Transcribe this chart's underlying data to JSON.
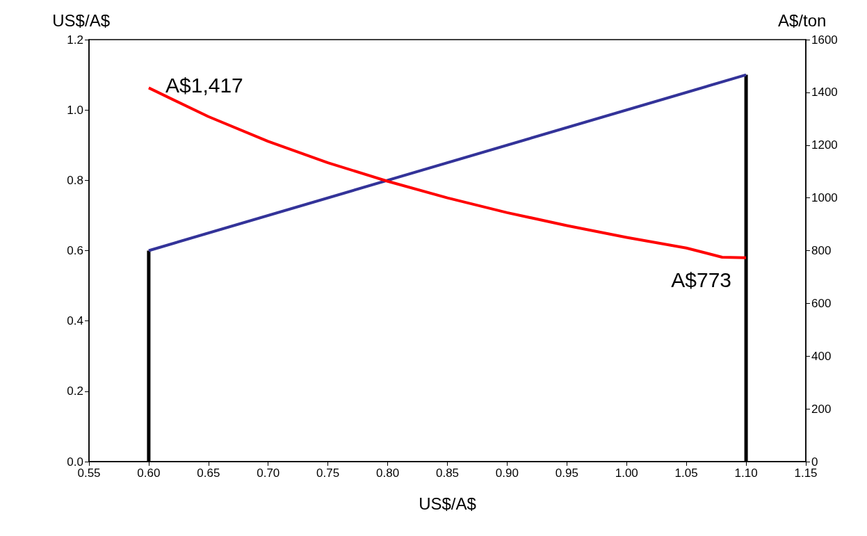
{
  "chart_data": {
    "type": "line",
    "xlabel": "US$/A$",
    "ylabel": "US$/A$",
    "y2label": "A$/ton",
    "xlim": [
      0.55,
      1.15
    ],
    "xticks": [
      {
        "value": 0.55,
        "label": "0.55"
      },
      {
        "value": 0.6,
        "label": "0.60"
      },
      {
        "value": 0.65,
        "label": "0.65"
      },
      {
        "value": 0.7,
        "label": "0.70"
      },
      {
        "value": 0.75,
        "label": "0.75"
      },
      {
        "value": 0.8,
        "label": "0.80"
      },
      {
        "value": 0.85,
        "label": "0.85"
      },
      {
        "value": 0.9,
        "label": "0.90"
      },
      {
        "value": 0.95,
        "label": "0.95"
      },
      {
        "value": 1.0,
        "label": "1.00"
      },
      {
        "value": 1.05,
        "label": "1.05"
      },
      {
        "value": 1.1,
        "label": "1.10"
      },
      {
        "value": 1.15,
        "label": "1.15"
      }
    ],
    "ylim": [
      0,
      1.2
    ],
    "yticks": [
      {
        "value": 0,
        "label": "0.0"
      },
      {
        "value": 0.2,
        "label": "0.2"
      },
      {
        "value": 0.4,
        "label": "0.4"
      },
      {
        "value": 0.6,
        "label": "0.6"
      },
      {
        "value": 0.8,
        "label": "0.8"
      },
      {
        "value": 1.0,
        "label": "1.0"
      },
      {
        "value": 1.2,
        "label": "1.2"
      }
    ],
    "y2lim": [
      0,
      1600
    ],
    "y2ticks": [
      0,
      200,
      400,
      600,
      800,
      1000,
      1200,
      1400,
      1600
    ],
    "series": [
      {
        "color": "#333399",
        "x": [
          0.6,
          1.1
        ],
        "values": [
          0.6,
          1.1
        ]
      },
      {
        "color": "#ff0000",
        "axis": "y2",
        "x": [
          0.6,
          0.65,
          0.7,
          0.75,
          0.8,
          0.85,
          0.9,
          0.95,
          1.0,
          1.05,
          1.08,
          1.1
        ],
        "values": [
          1417,
          1308,
          1214,
          1133,
          1063,
          1000,
          944,
          895,
          850,
          810,
          775,
          773
        ]
      },
      {
        "type": "bar",
        "color": "#000000",
        "x": [
          0.6,
          1.1
        ],
        "values": [
          0.6,
          1.1
        ]
      }
    ],
    "annotations": [
      "A$1,417",
      "A$773"
    ],
    "marker": "none",
    "line_style": "solid"
  }
}
